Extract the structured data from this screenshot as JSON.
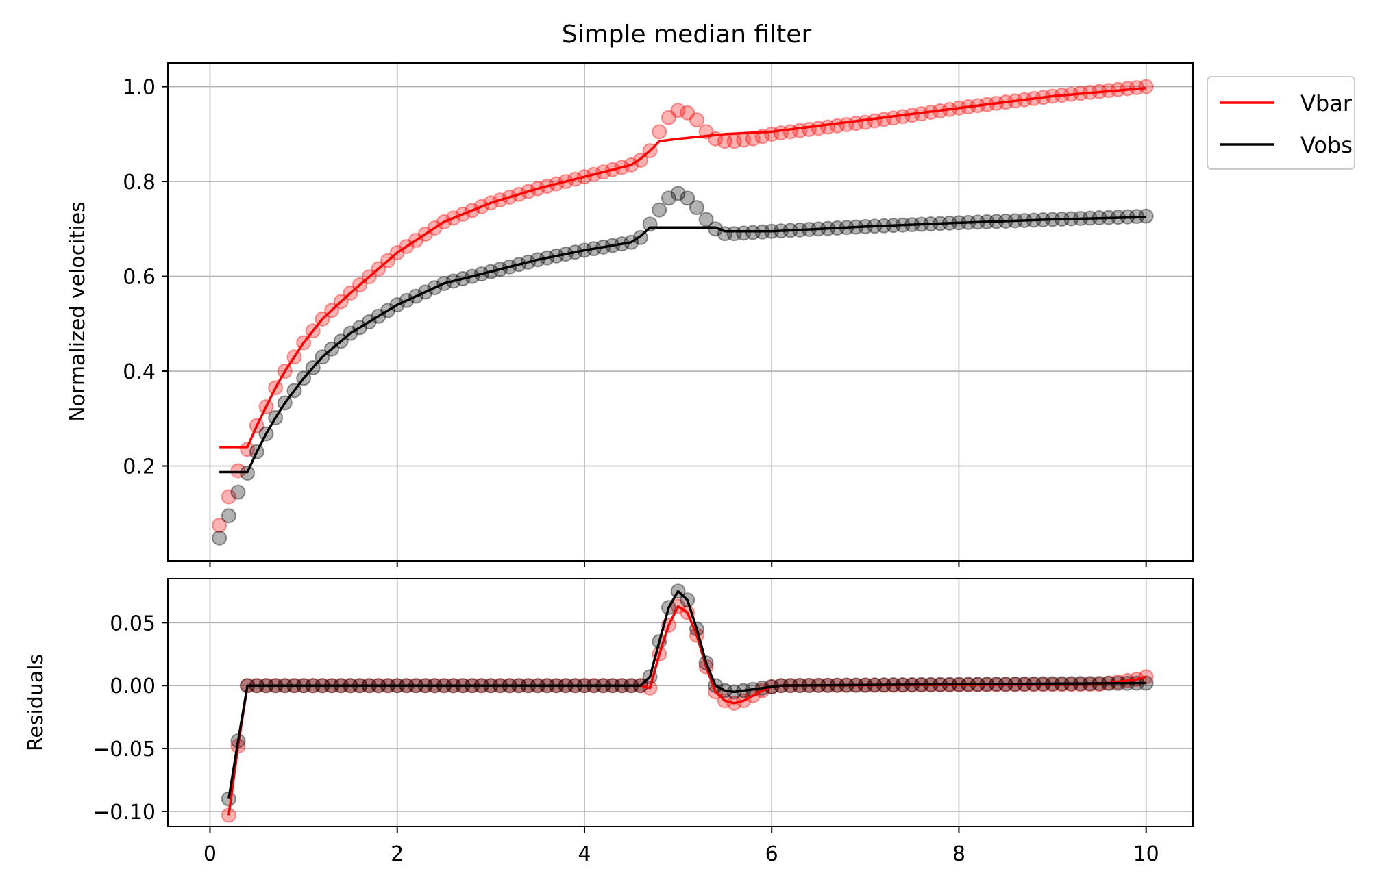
{
  "figure": {
    "title": "Simple median filter"
  },
  "chart_data": [
    {
      "type": "line",
      "panel": "top",
      "title": "Simple median filter",
      "xlabel": "",
      "ylabel": "Normalized velocities",
      "xlim": [
        -0.45,
        10.5
      ],
      "ylim": [
        0.0,
        1.05
      ],
      "grid": true,
      "legend": {
        "placement": "outside-top-right",
        "entries": [
          "Vbar",
          "Vobs"
        ]
      },
      "x_ticks": [
        0,
        2,
        4,
        6,
        8,
        10
      ],
      "x_ticklabels_visible": false,
      "y_ticks": [
        0.2,
        0.4,
        0.6,
        0.8,
        1.0
      ],
      "y_ticklabels": [
        "0.2",
        "0.4",
        "0.6",
        "0.8",
        "1.0"
      ],
      "x_range": {
        "start": 0.1,
        "stop": 10.0,
        "step": 0.1
      },
      "series": [
        {
          "name": "Vbar",
          "role": "scatter-raw",
          "color": "#ff0000",
          "marker_alpha": 0.3,
          "anchors_x": [
            0.1,
            0.2,
            0.3,
            0.4,
            0.5,
            0.6,
            0.7,
            0.8,
            1.0,
            1.2,
            1.5,
            2.0,
            2.5,
            3.0,
            3.5,
            4.0,
            4.3,
            4.5,
            4.6,
            4.7,
            4.8,
            4.9,
            5.0,
            5.1,
            5.2,
            5.3,
            5.4,
            5.5,
            5.6,
            5.8,
            6.0,
            7.0,
            8.0,
            9.0,
            10.0
          ],
          "anchors_y": [
            0.075,
            0.135,
            0.19,
            0.235,
            0.285,
            0.325,
            0.365,
            0.4,
            0.46,
            0.51,
            0.565,
            0.65,
            0.715,
            0.755,
            0.785,
            0.81,
            0.825,
            0.835,
            0.845,
            0.865,
            0.905,
            0.935,
            0.95,
            0.945,
            0.93,
            0.905,
            0.89,
            0.885,
            0.885,
            0.89,
            0.9,
            0.925,
            0.955,
            0.98,
            1.0
          ]
        },
        {
          "name": "Vobs",
          "role": "scatter-raw",
          "color": "#000000",
          "marker_alpha": 0.3,
          "anchors_x": [
            0.1,
            0.2,
            0.3,
            0.4,
            0.5,
            0.6,
            0.7,
            0.8,
            1.0,
            1.2,
            1.5,
            2.0,
            2.5,
            3.0,
            3.5,
            4.0,
            4.3,
            4.5,
            4.6,
            4.7,
            4.8,
            4.9,
            5.0,
            5.1,
            5.2,
            5.3,
            5.4,
            5.5,
            5.6,
            6.0,
            7.0,
            8.0,
            9.0,
            10.0
          ],
          "anchors_y": [
            0.048,
            0.095,
            0.145,
            0.185,
            0.23,
            0.268,
            0.302,
            0.333,
            0.385,
            0.43,
            0.48,
            0.54,
            0.585,
            0.61,
            0.635,
            0.655,
            0.665,
            0.672,
            0.682,
            0.71,
            0.74,
            0.765,
            0.775,
            0.765,
            0.745,
            0.72,
            0.7,
            0.69,
            0.69,
            0.695,
            0.705,
            0.713,
            0.72,
            0.727
          ]
        },
        {
          "name": "Vbar",
          "role": "median-filtered",
          "color": "#ff0000",
          "anchors_x": [
            0.1,
            0.4,
            0.5,
            0.6,
            0.7,
            0.8,
            1.0,
            1.2,
            1.5,
            2.0,
            2.5,
            3.0,
            3.5,
            4.0,
            4.3,
            4.5,
            4.6,
            4.7,
            4.8,
            5.0,
            5.5,
            6.0,
            7.0,
            8.0,
            9.0,
            10.0
          ],
          "anchors_y": [
            0.24,
            0.24,
            0.285,
            0.325,
            0.365,
            0.4,
            0.46,
            0.51,
            0.565,
            0.65,
            0.715,
            0.755,
            0.785,
            0.81,
            0.825,
            0.835,
            0.848,
            0.865,
            0.885,
            0.89,
            0.9,
            0.905,
            0.93,
            0.955,
            0.98,
            0.997
          ]
        },
        {
          "name": "Vobs",
          "role": "median-filtered",
          "color": "#000000",
          "anchors_x": [
            0.1,
            0.4,
            0.5,
            0.6,
            0.7,
            0.8,
            1.0,
            1.2,
            1.5,
            2.0,
            2.5,
            3.0,
            3.5,
            4.0,
            4.3,
            4.5,
            4.6,
            4.7,
            5.4,
            5.5,
            6.0,
            7.0,
            8.0,
            9.0,
            10.0
          ],
          "anchors_y": [
            0.187,
            0.187,
            0.23,
            0.268,
            0.302,
            0.333,
            0.385,
            0.43,
            0.48,
            0.54,
            0.585,
            0.61,
            0.635,
            0.655,
            0.665,
            0.672,
            0.685,
            0.703,
            0.703,
            0.695,
            0.695,
            0.705,
            0.713,
            0.72,
            0.725
          ]
        }
      ]
    },
    {
      "type": "line",
      "panel": "bottom",
      "xlabel": "",
      "ylabel": "Residuals",
      "xlim": [
        -0.45,
        10.5
      ],
      "ylim": [
        -0.112,
        0.085
      ],
      "grid": true,
      "x_ticks": [
        0,
        2,
        4,
        6,
        8,
        10
      ],
      "x_ticklabels": [
        "0",
        "2",
        "4",
        "6",
        "8",
        "10"
      ],
      "y_ticks": [
        -0.1,
        -0.05,
        0.0,
        0.05
      ],
      "y_ticklabels": [
        "−0.10",
        "−0.05",
        "0.00",
        "0.05"
      ],
      "x_range": {
        "start": 0.2,
        "stop": 10.0,
        "step": 0.1
      },
      "series": [
        {
          "name": "Vbar",
          "role": "scatter-raw",
          "color": "#ff0000",
          "marker_alpha": 0.3,
          "anchors_x": [
            0.2,
            0.3,
            0.4,
            4.6,
            4.7,
            4.8,
            4.9,
            5.0,
            5.1,
            5.2,
            5.3,
            5.4,
            5.5,
            5.6,
            5.7,
            5.8,
            5.9,
            6.0,
            6.1,
            9.5,
            9.9,
            10.0
          ],
          "anchors_y": [
            -0.103,
            -0.048,
            0.0,
            0.0,
            -0.002,
            0.025,
            0.048,
            0.063,
            0.058,
            0.04,
            0.015,
            -0.005,
            -0.012,
            -0.014,
            -0.012,
            -0.008,
            -0.004,
            -0.001,
            0.0,
            0.001,
            0.005,
            0.007
          ]
        },
        {
          "name": "Vobs",
          "role": "scatter-raw",
          "color": "#000000",
          "marker_alpha": 0.3,
          "anchors_x": [
            0.2,
            0.3,
            0.4,
            4.6,
            4.7,
            4.8,
            4.9,
            5.0,
            5.1,
            5.2,
            5.3,
            5.4,
            5.5,
            5.6,
            5.7,
            5.8,
            6.0,
            6.1,
            10.0
          ],
          "anchors_y": [
            -0.09,
            -0.044,
            0.0,
            0.0,
            0.007,
            0.035,
            0.062,
            0.075,
            0.068,
            0.045,
            0.018,
            0.0,
            -0.004,
            -0.005,
            -0.004,
            -0.003,
            -0.001,
            0.0,
            0.002
          ]
        },
        {
          "name": "Vbar",
          "role": "residual-line",
          "color": "#ff0000",
          "anchors_x": [
            0.2,
            0.3,
            0.4,
            4.6,
            4.7,
            4.8,
            4.9,
            5.0,
            5.1,
            5.2,
            5.3,
            5.4,
            5.5,
            5.6,
            5.7,
            5.8,
            5.9,
            6.0,
            6.1,
            9.5,
            9.9,
            10.0
          ],
          "anchors_y": [
            -0.103,
            -0.048,
            0.0,
            0.0,
            -0.002,
            0.025,
            0.048,
            0.063,
            0.058,
            0.04,
            0.015,
            -0.005,
            -0.012,
            -0.014,
            -0.012,
            -0.008,
            -0.004,
            -0.001,
            0.0,
            0.001,
            0.005,
            0.007
          ]
        },
        {
          "name": "Vobs",
          "role": "residual-line",
          "color": "#000000",
          "anchors_x": [
            0.2,
            0.3,
            0.4,
            4.6,
            4.7,
            4.8,
            4.9,
            5.0,
            5.1,
            5.2,
            5.3,
            5.4,
            5.5,
            5.6,
            5.7,
            5.8,
            6.0,
            6.1,
            10.0
          ],
          "anchors_y": [
            -0.09,
            -0.044,
            0.0,
            0.0,
            0.007,
            0.035,
            0.062,
            0.075,
            0.068,
            0.045,
            0.018,
            0.0,
            -0.004,
            -0.005,
            -0.004,
            -0.003,
            -0.001,
            0.0,
            0.002
          ]
        }
      ]
    }
  ]
}
